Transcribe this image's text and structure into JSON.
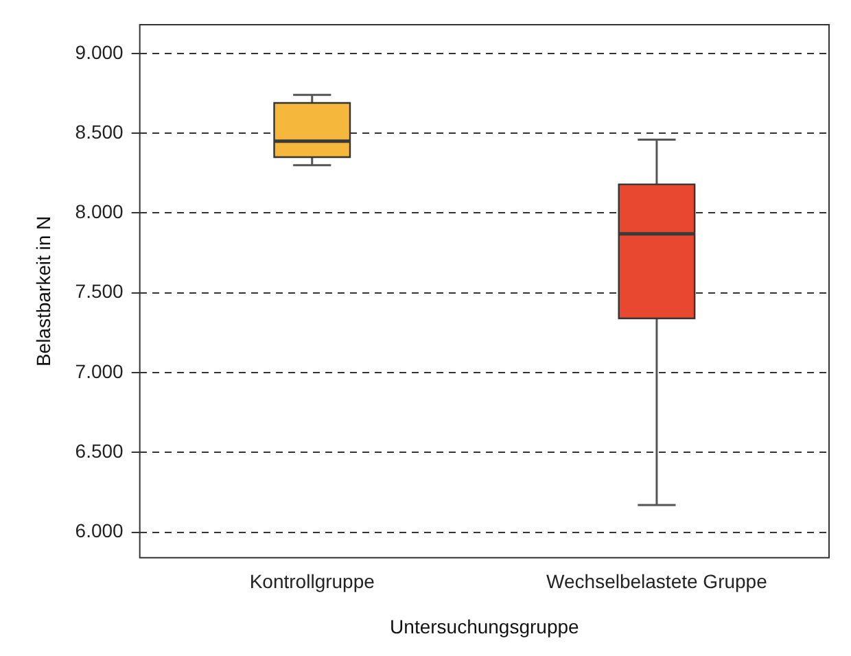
{
  "chart_data": {
    "type": "box",
    "xlabel": "Untersuchungsgruppe",
    "ylabel": "Belastbarkeit in N",
    "categories": [
      "Kontrollgruppe",
      "Wechselbelastete Gruppe"
    ],
    "colors": [
      "#f5b83d",
      "#e8482f"
    ],
    "boxes": [
      {
        "low": 8300,
        "q1": 8350,
        "median": 8450,
        "q3": 8690,
        "high": 8740
      },
      {
        "low": 6170,
        "q1": 7340,
        "median": 7870,
        "q3": 8180,
        "high": 8460
      }
    ],
    "ylim": [
      5840,
      9180
    ],
    "yticks": [
      {
        "value": 6000,
        "label": "6.000"
      },
      {
        "value": 6500,
        "label": "6.500"
      },
      {
        "value": 7000,
        "label": "7.000"
      },
      {
        "value": 7500,
        "label": "7.500"
      },
      {
        "value": 8000,
        "label": "8.000"
      },
      {
        "value": 8500,
        "label": "8.500"
      },
      {
        "value": 9000,
        "label": "9.000"
      }
    ],
    "grid": "y",
    "line_style": "dashed",
    "legend": false
  }
}
